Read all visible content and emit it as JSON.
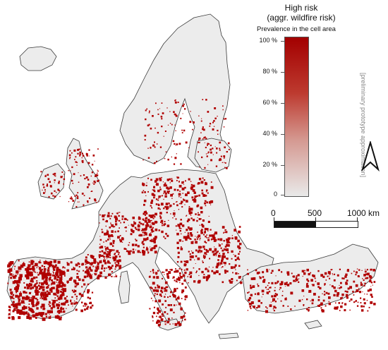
{
  "legend": {
    "title_line1": "High risk",
    "title_line2": "(aggr. wildfire risk)",
    "subtitle": "Prevalence in the cell area",
    "ticks": [
      "100 %",
      "80 %",
      "60 %",
      "40 %",
      "20 %",
      "0"
    ],
    "ramp_colors": [
      "#a30000",
      "#e9e9e9"
    ],
    "note": "[preliminary prototype approximation]"
  },
  "scale": {
    "labels": [
      "0",
      "500",
      "1000 km"
    ]
  },
  "colors": {
    "land": "#ececec",
    "outline": "#3a3a3a",
    "risk": "#b00000",
    "sea": "#ffffff"
  },
  "icons": {
    "north_arrow": "north-arrow-icon"
  }
}
